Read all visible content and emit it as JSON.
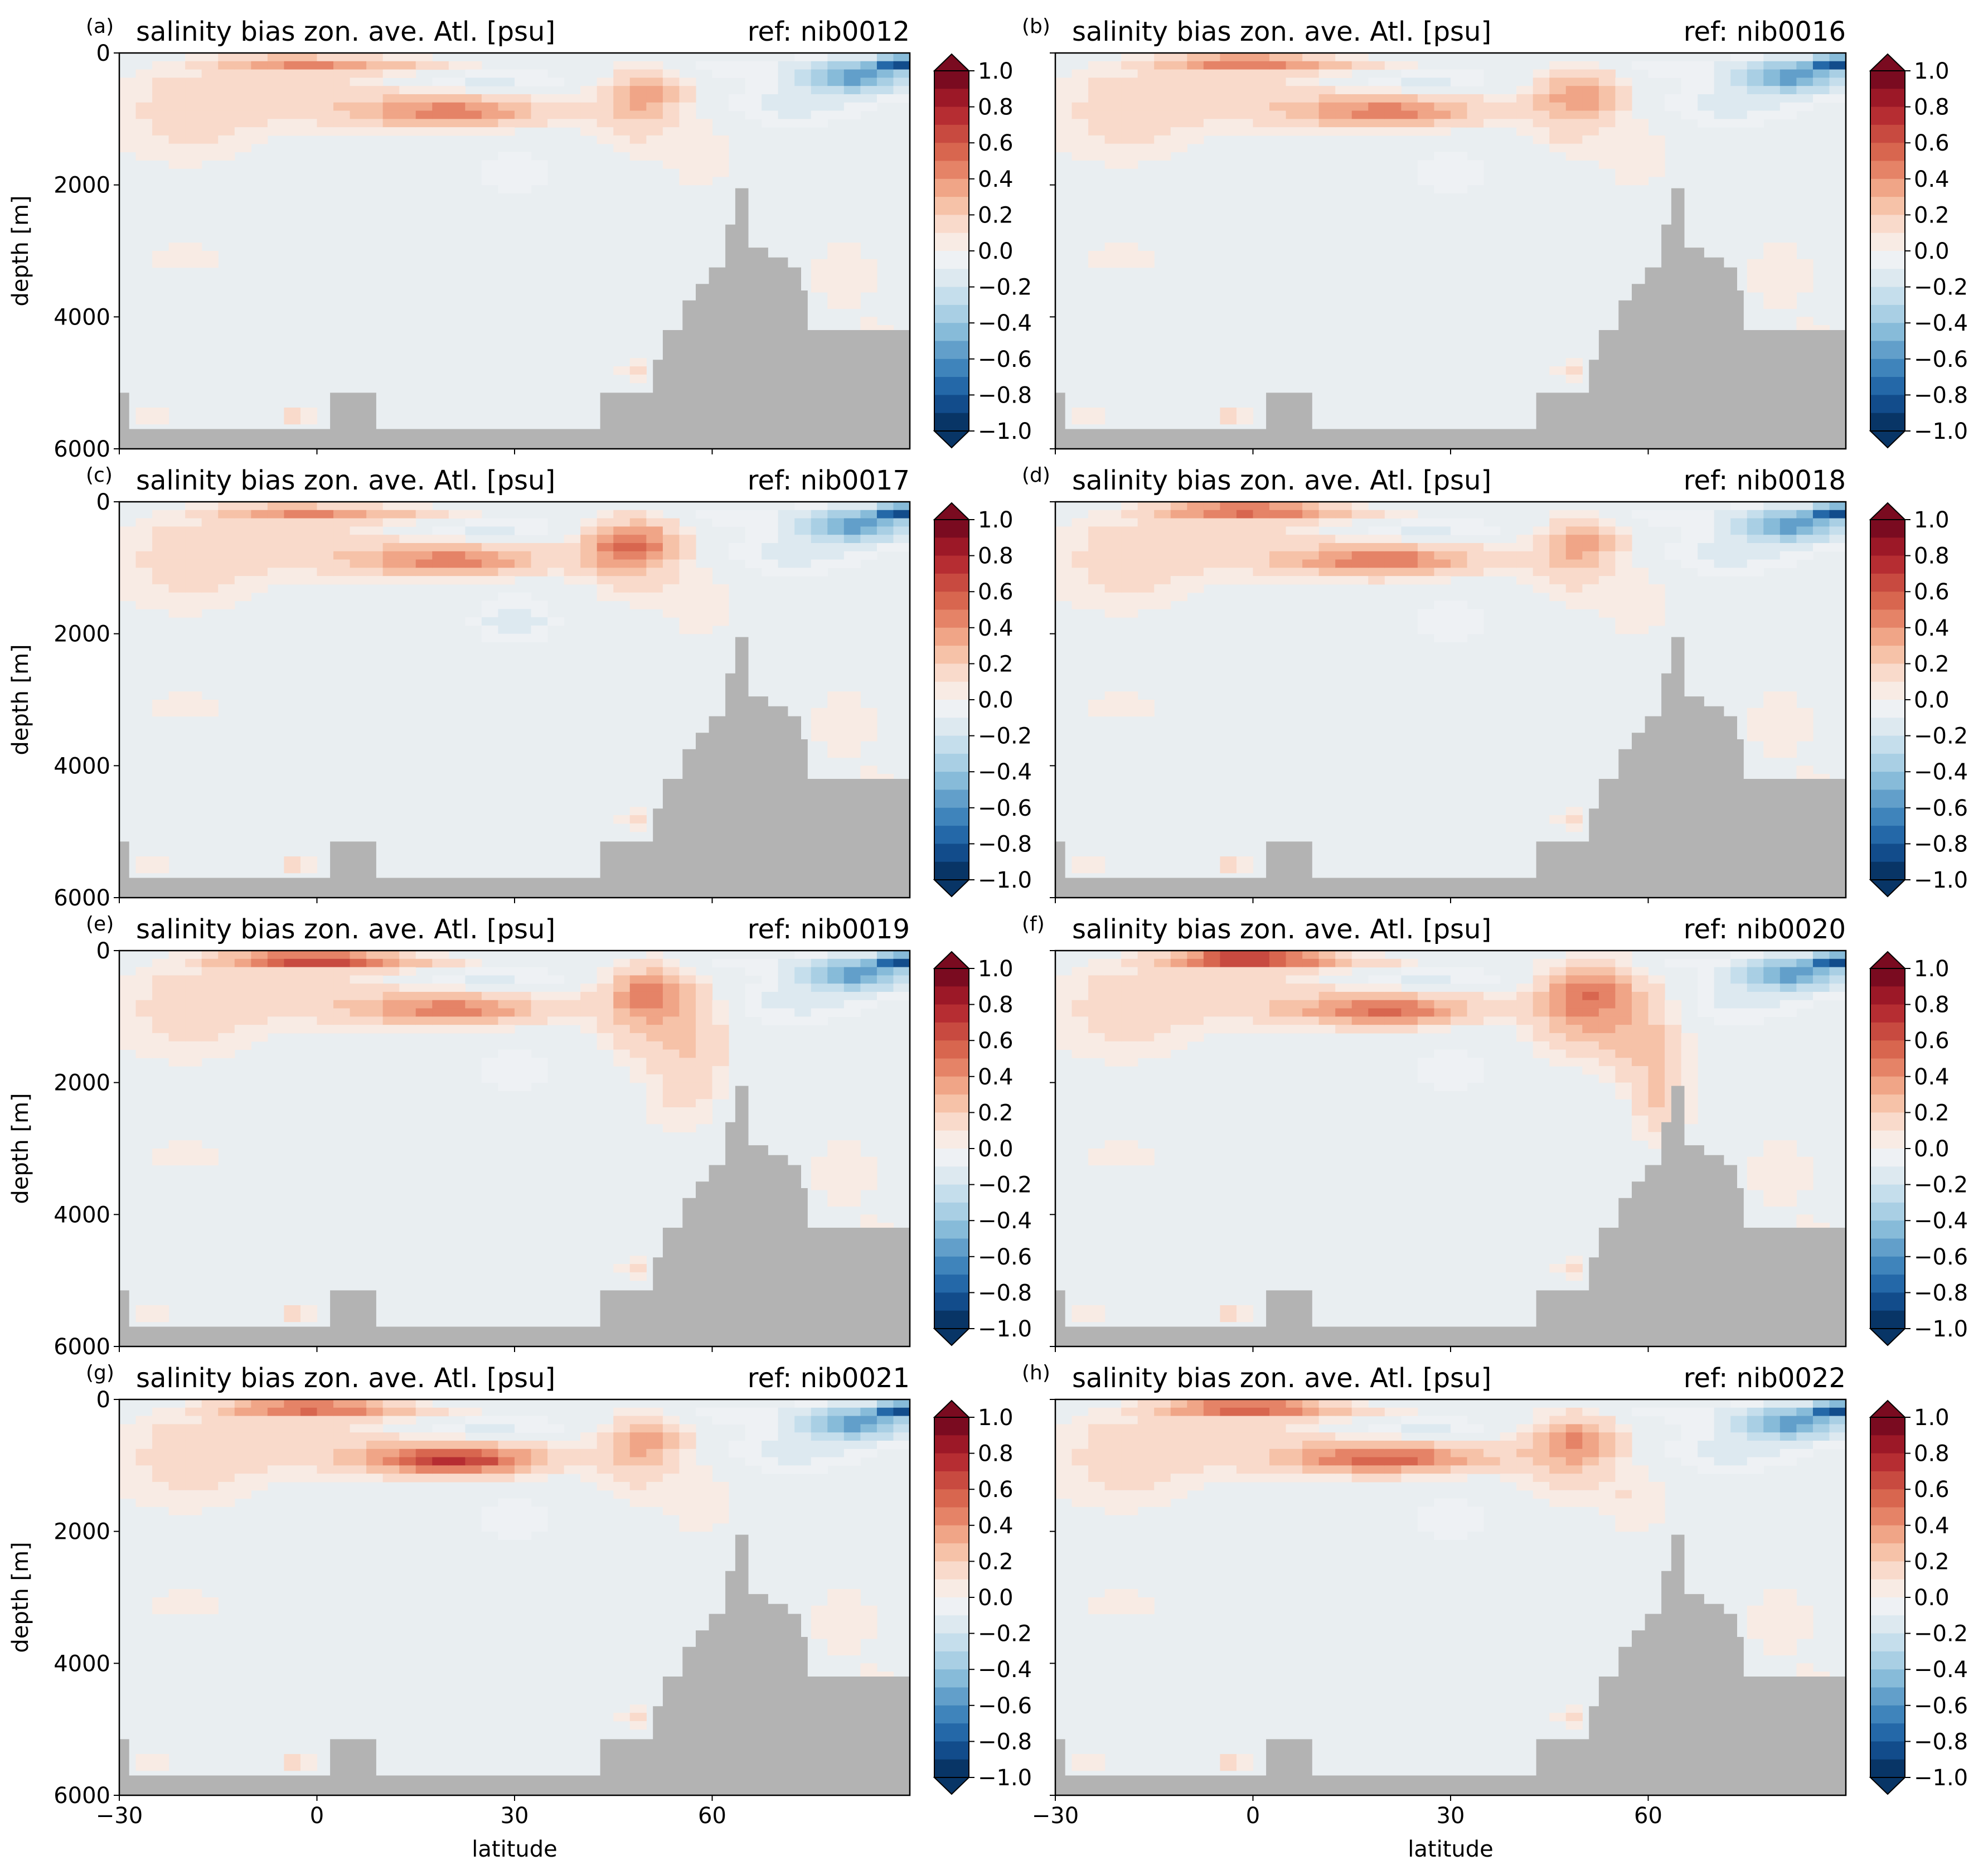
{
  "figure": {
    "title_text": "salinity bias zon. ave. Atl. [psu]",
    "ylabel": "depth [m]",
    "xlabel": "latitude",
    "land_color": "#b3b3b3",
    "ocean_base_color": "#e9eef1"
  },
  "chart_data": [
    {
      "type": "heatmap",
      "panel": "(a)",
      "title": "salinity bias zon. ave. Atl. [psu]",
      "ref": "ref: nib0012",
      "xlabel": "",
      "ylabel": "depth [m]",
      "xlim": [
        -30,
        90
      ],
      "ylim": [
        6000,
        0
      ],
      "yticks": [
        0,
        2000,
        4000,
        6000
      ],
      "xticks": [
        -30,
        0,
        30,
        60
      ],
      "show_xticklabels": false,
      "show_yticklabels": true
    },
    {
      "type": "heatmap",
      "panel": "(b)",
      "title": "salinity bias zon. ave. Atl. [psu]",
      "ref": "ref: nib0016",
      "xlabel": "",
      "ylabel": "",
      "xlim": [
        -30,
        90
      ],
      "ylim": [
        6000,
        0
      ],
      "yticks": [
        0,
        2000,
        4000,
        6000
      ],
      "xticks": [
        -30,
        0,
        30,
        60
      ],
      "show_xticklabels": false,
      "show_yticklabels": false
    },
    {
      "type": "heatmap",
      "panel": "(c)",
      "title": "salinity bias zon. ave. Atl. [psu]",
      "ref": "ref: nib0017",
      "xlabel": "",
      "ylabel": "depth [m]",
      "xlim": [
        -30,
        90
      ],
      "ylim": [
        6000,
        0
      ],
      "yticks": [
        0,
        2000,
        4000,
        6000
      ],
      "xticks": [
        -30,
        0,
        30,
        60
      ],
      "show_xticklabels": false,
      "show_yticklabels": true
    },
    {
      "type": "heatmap",
      "panel": "(d)",
      "title": "salinity bias zon. ave. Atl. [psu]",
      "ref": "ref: nib0018",
      "xlabel": "",
      "ylabel": "",
      "xlim": [
        -30,
        90
      ],
      "ylim": [
        6000,
        0
      ],
      "yticks": [
        0,
        2000,
        4000,
        6000
      ],
      "xticks": [
        -30,
        0,
        30,
        60
      ],
      "show_xticklabels": false,
      "show_yticklabels": false
    },
    {
      "type": "heatmap",
      "panel": "(e)",
      "title": "salinity bias zon. ave. Atl. [psu]",
      "ref": "ref: nib0019",
      "xlabel": "",
      "ylabel": "depth [m]",
      "xlim": [
        -30,
        90
      ],
      "ylim": [
        6000,
        0
      ],
      "yticks": [
        0,
        2000,
        4000,
        6000
      ],
      "xticks": [
        -30,
        0,
        30,
        60
      ],
      "show_xticklabels": false,
      "show_yticklabels": true
    },
    {
      "type": "heatmap",
      "panel": "(f)",
      "title": "salinity bias zon. ave. Atl. [psu]",
      "ref": "ref: nib0020",
      "xlabel": "",
      "ylabel": "",
      "xlim": [
        -30,
        90
      ],
      "ylim": [
        6000,
        0
      ],
      "yticks": [
        0,
        2000,
        4000,
        6000
      ],
      "xticks": [
        -30,
        0,
        30,
        60
      ],
      "show_xticklabels": false,
      "show_yticklabels": false
    },
    {
      "type": "heatmap",
      "panel": "(g)",
      "title": "salinity bias zon. ave. Atl. [psu]",
      "ref": "ref: nib0021",
      "xlabel": "latitude",
      "ylabel": "depth [m]",
      "xlim": [
        -30,
        90
      ],
      "ylim": [
        6000,
        0
      ],
      "yticks": [
        0,
        2000,
        4000,
        6000
      ],
      "xticks": [
        -30,
        0,
        30,
        60
      ],
      "show_xticklabels": true,
      "show_yticklabels": true
    },
    {
      "type": "heatmap",
      "panel": "(h)",
      "title": "salinity bias zon. ave. Atl. [psu]",
      "ref": "ref: nib0022",
      "xlabel": "latitude",
      "ylabel": "",
      "xlim": [
        -30,
        90
      ],
      "ylim": [
        6000,
        0
      ],
      "yticks": [
        0,
        2000,
        4000,
        6000
      ],
      "xticks": [
        -30,
        0,
        30,
        60
      ],
      "show_xticklabels": true,
      "show_yticklabels": false
    }
  ],
  "colorbar": {
    "ticks": [
      1.0,
      0.8,
      0.6,
      0.4,
      0.2,
      0.0,
      -0.2,
      -0.4,
      -0.6,
      -0.8,
      -1.0
    ],
    "tick_labels": [
      "1.0",
      "0.8",
      "0.6",
      "0.4",
      "0.2",
      "0.0",
      "−0.2",
      "−0.4",
      "−0.6",
      "−0.8",
      "−1.0"
    ],
    "extend": "both",
    "colors_top_to_bottom": [
      "#7a0b20",
      "#9c1827",
      "#b62d32",
      "#c84a40",
      "#d8664f",
      "#e58367",
      "#f0a587",
      "#f6c2a8",
      "#f9dacb",
      "#f8ebe4",
      "#eef1f4",
      "#dde9f0",
      "#c5deec",
      "#a9cfe4",
      "#87bbd9",
      "#629fca",
      "#3f84bb",
      "#2468a8",
      "#124c8b",
      "#083566"
    ]
  }
}
